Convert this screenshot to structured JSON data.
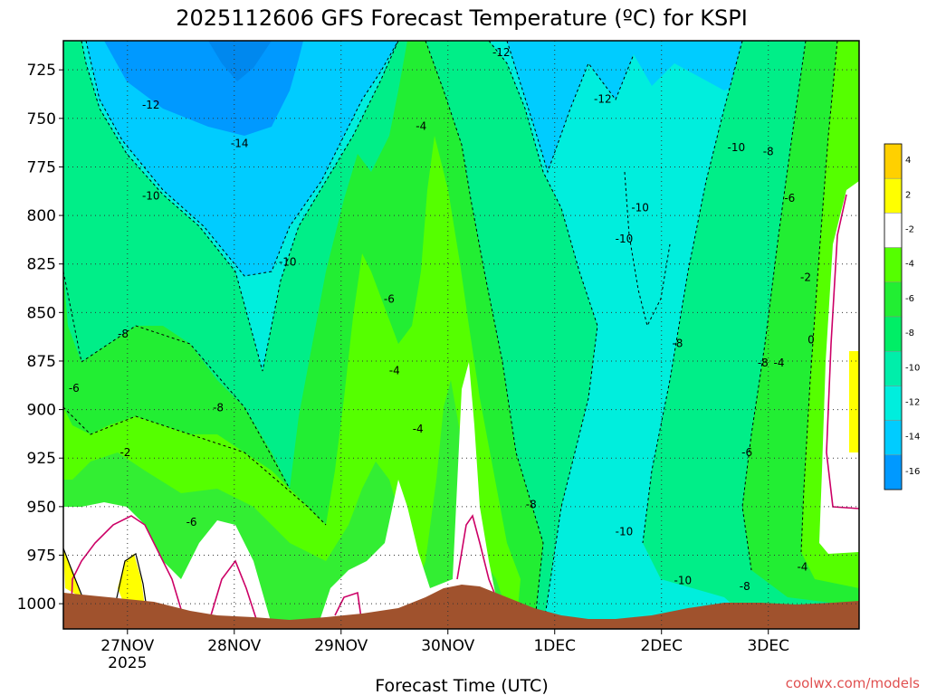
{
  "chart_data": {
    "type": "heatmap",
    "title": "2025112606 GFS Forecast Temperature (ºC) for KSPI",
    "xlabel": "Forecast Time (UTC)",
    "credit": "coolwx.com/models",
    "x_ticks": [
      {
        "label": "27NOV",
        "sublabel": "2025"
      },
      {
        "label": "28NOV",
        "sublabel": ""
      },
      {
        "label": "29NOV",
        "sublabel": ""
      },
      {
        "label": "30NOV",
        "sublabel": ""
      },
      {
        "label": "1DEC",
        "sublabel": ""
      },
      {
        "label": "2DEC",
        "sublabel": ""
      },
      {
        "label": "3DEC",
        "sublabel": ""
      }
    ],
    "x_range_days": [
      -0.6,
      6.85
    ],
    "y_ticks": [
      "725",
      "750",
      "775",
      "800",
      "825",
      "850",
      "875",
      "900",
      "925",
      "950",
      "975",
      "1000"
    ],
    "y_range_hpa": [
      710,
      1013
    ],
    "colorbar": {
      "levels": [
        "4",
        "2",
        "-2",
        "-4",
        "-6",
        "-8",
        "-10",
        "-12",
        "-14",
        "-16"
      ],
      "colors": [
        "#ffd000",
        "#ffff00",
        "#ffffff",
        "#55ff00",
        "#22ee33",
        "#00ee66",
        "#00eeaa",
        "#00eedd",
        "#00ccff",
        "#0099ff"
      ]
    },
    "contour_labels": [
      {
        "text": "-12",
        "day": 0.22,
        "p": 743
      },
      {
        "text": "-12",
        "day": 3.5,
        "p": 716
      },
      {
        "text": "-12",
        "day": 4.45,
        "p": 740
      },
      {
        "text": "-14",
        "day": 1.05,
        "p": 763
      },
      {
        "text": "-10",
        "day": 0.22,
        "p": 790
      },
      {
        "text": "-10",
        "day": 1.5,
        "p": 824
      },
      {
        "text": "-10",
        "day": 4.8,
        "p": 796
      },
      {
        "text": "-10",
        "day": 4.65,
        "p": 812
      },
      {
        "text": "-10",
        "day": 5.7,
        "p": 765
      },
      {
        "text": "-10",
        "day": 4.65,
        "p": 963
      },
      {
        "text": "-10",
        "day": 5.2,
        "p": 988
      },
      {
        "text": "-8",
        "day": -0.04,
        "p": 861
      },
      {
        "text": "-8",
        "day": 0.85,
        "p": 899
      },
      {
        "text": "-8",
        "day": 5.15,
        "p": 866
      },
      {
        "text": "-8",
        "day": 5.95,
        "p": 876
      },
      {
        "text": "-8",
        "day": 6.0,
        "p": 767
      },
      {
        "text": "-8",
        "day": 3.78,
        "p": 949
      },
      {
        "text": "-8",
        "day": 5.78,
        "p": 991
      },
      {
        "text": "-6",
        "day": -0.5,
        "p": 889
      },
      {
        "text": "-6",
        "day": 0.6,
        "p": 958
      },
      {
        "text": "-6",
        "day": 2.45,
        "p": 843
      },
      {
        "text": "-6",
        "day": 6.2,
        "p": 791
      },
      {
        "text": "-6",
        "day": 5.8,
        "p": 922
      },
      {
        "text": "-4",
        "day": 2.75,
        "p": 754
      },
      {
        "text": "-4",
        "day": 2.5,
        "p": 880
      },
      {
        "text": "-4",
        "day": 2.72,
        "p": 910
      },
      {
        "text": "-4",
        "day": 6.1,
        "p": 876
      },
      {
        "text": "-4",
        "day": 6.32,
        "p": 981
      },
      {
        "text": "-2",
        "day": -0.02,
        "p": 922
      },
      {
        "text": "-2",
        "day": 6.35,
        "p": 832
      },
      {
        "text": "0",
        "day": 6.4,
        "p": 864
      }
    ]
  }
}
